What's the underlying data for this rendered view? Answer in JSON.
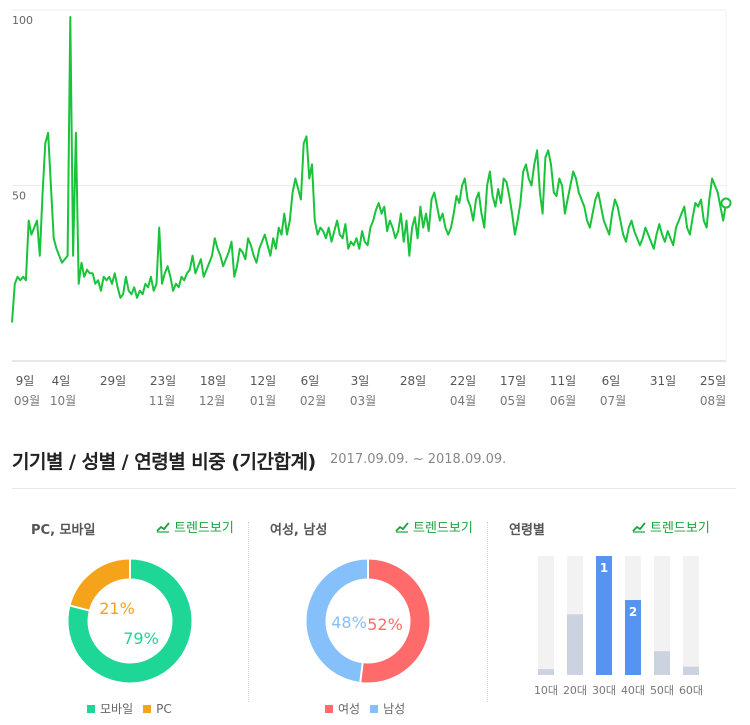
{
  "chart_data": [
    {
      "type": "line",
      "yticks": [
        "100",
        "50"
      ],
      "ylim": [
        0,
        100
      ],
      "grid": true,
      "color": "#19c33a",
      "x_day_labels": [
        "9일",
        "4일",
        "29일",
        "23일",
        "18일",
        "12일",
        "6일",
        "3일",
        "28일",
        "22일",
        "17일",
        "11일",
        "6일",
        "31일",
        "25일"
      ],
      "x_month_labels": [
        "09월",
        "10월",
        "11월",
        "12월",
        "01월",
        "02월",
        "03월",
        "04월",
        "05월",
        "06월",
        "07월",
        "08월"
      ],
      "values": [
        11,
        22,
        24,
        23,
        24,
        23,
        40,
        36,
        38,
        40,
        30,
        48,
        62,
        65,
        50,
        35,
        32,
        30,
        28,
        29,
        30,
        98,
        30,
        65,
        22,
        28,
        24,
        26,
        25,
        25,
        22,
        23,
        20,
        24,
        23,
        24,
        22,
        25,
        21,
        18,
        19,
        24,
        20,
        19,
        21,
        18,
        20,
        19,
        22,
        21,
        24,
        20,
        22,
        38,
        22,
        25,
        27,
        24,
        20,
        22,
        21,
        24,
        23,
        25,
        26,
        30,
        25,
        27,
        29,
        24,
        26,
        28,
        30,
        35,
        32,
        30,
        27,
        29,
        31,
        34,
        24,
        27,
        32,
        31,
        29,
        35,
        33,
        30,
        28,
        32,
        34,
        36,
        33,
        30,
        35,
        32,
        38,
        36,
        42,
        36,
        40,
        48,
        52,
        49,
        46,
        62,
        64,
        52,
        56,
        40,
        36,
        38,
        37,
        35,
        38,
        34,
        37,
        40,
        36,
        35,
        39,
        32,
        34,
        33,
        35,
        32,
        37,
        34,
        33,
        38,
        40,
        43,
        45,
        42,
        44,
        37,
        40,
        38,
        35,
        37,
        42,
        34,
        40,
        30,
        38,
        41,
        35,
        44,
        38,
        42,
        37,
        46,
        48,
        44,
        40,
        42,
        38,
        36,
        38,
        42,
        47,
        45,
        50,
        52,
        46,
        44,
        40,
        46,
        48,
        42,
        38,
        50,
        54,
        47,
        44,
        49,
        45,
        52,
        51,
        47,
        42,
        36,
        40,
        45,
        54,
        56,
        52,
        50,
        56,
        60,
        48,
        42,
        58,
        60,
        56,
        48,
        47,
        52,
        50,
        42,
        46,
        50,
        54,
        52,
        48,
        46,
        44,
        40,
        38,
        42,
        46,
        48,
        44,
        40,
        38,
        36,
        42,
        46,
        44,
        40,
        36,
        34,
        38,
        40,
        37,
        35,
        33,
        35,
        38,
        36,
        34,
        32,
        36,
        39,
        36,
        34,
        37,
        35,
        33,
        38,
        40,
        42,
        44,
        38,
        36,
        41,
        45,
        44,
        46,
        40,
        38,
        46,
        52,
        50,
        48,
        44,
        40,
        45
      ]
    },
    {
      "type": "pie",
      "title": "PC, 모바일",
      "labels": [
        "모바일",
        "PC"
      ],
      "values": [
        79,
        21
      ],
      "display": [
        "79%",
        "21%"
      ],
      "colors": [
        "#1ed695",
        "#f5a31a"
      ]
    },
    {
      "type": "pie",
      "title": "여성, 남성",
      "labels": [
        "여성",
        "남성"
      ],
      "values": [
        52,
        48
      ],
      "display": [
        "52%",
        "48%"
      ],
      "colors": [
        "#ff6b6b",
        "#85c0fa"
      ]
    },
    {
      "type": "bar",
      "title": "연령별",
      "categories": [
        "10대",
        "20대",
        "30대",
        "40대",
        "50대",
        "60대"
      ],
      "values": [
        5,
        51,
        100,
        63,
        20,
        7
      ],
      "rank_labels": [
        "",
        "",
        "1",
        "2",
        "",
        ""
      ],
      "highlight": [
        false,
        false,
        true,
        true,
        false,
        false
      ],
      "ylim": [
        0,
        100
      ],
      "colors": {
        "highlight": "#5793f0",
        "normal": "#ccd3e0",
        "track": "#f2f2f2"
      }
    }
  ],
  "section": {
    "title": "기기별 / 성별 / 연령별 비중 (기간합계)",
    "range": "2017.09.09. ~ 2018.09.09."
  },
  "panels": [
    {
      "title": "PC, 모바일",
      "link": "트렌드보기"
    },
    {
      "title": "여성, 남성",
      "link": "트렌드보기"
    },
    {
      "title": "연령별",
      "link": "트렌드보기"
    }
  ]
}
